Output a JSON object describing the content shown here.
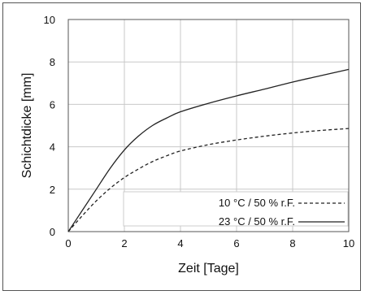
{
  "chart_data": {
    "type": "line",
    "xlabel": "Zeit [Tage]",
    "ylabel": "Schichtdicke [mm]",
    "xlim": [
      0,
      10
    ],
    "ylim": [
      0,
      10
    ],
    "xticks": [
      "0",
      "2",
      "4",
      "6",
      "8",
      "10"
    ],
    "yticks": [
      "0",
      "2",
      "4",
      "6",
      "8",
      "10"
    ],
    "grid": true,
    "legend_position": "bottom-right",
    "series": [
      {
        "name": "10 °C / 50 % r.F.",
        "style": "dashed",
        "color": "#222222",
        "x": [
          0,
          0.5,
          1,
          1.5,
          2,
          2.5,
          3,
          3.5,
          4,
          5,
          6,
          7,
          8,
          9,
          10
        ],
        "y": [
          0,
          0.75,
          1.45,
          2.05,
          2.55,
          2.95,
          3.3,
          3.57,
          3.8,
          4.1,
          4.32,
          4.5,
          4.65,
          4.77,
          4.86
        ]
      },
      {
        "name": "23 °C / 50 % r.F.",
        "style": "solid",
        "color": "#222222",
        "x": [
          0,
          0.5,
          1,
          1.5,
          2,
          2.5,
          3,
          3.5,
          4,
          5,
          6,
          7,
          8,
          9,
          10
        ],
        "y": [
          0,
          1.0,
          2.0,
          3.0,
          3.85,
          4.5,
          5.0,
          5.35,
          5.65,
          6.05,
          6.4,
          6.72,
          7.05,
          7.35,
          7.65
        ]
      }
    ]
  }
}
